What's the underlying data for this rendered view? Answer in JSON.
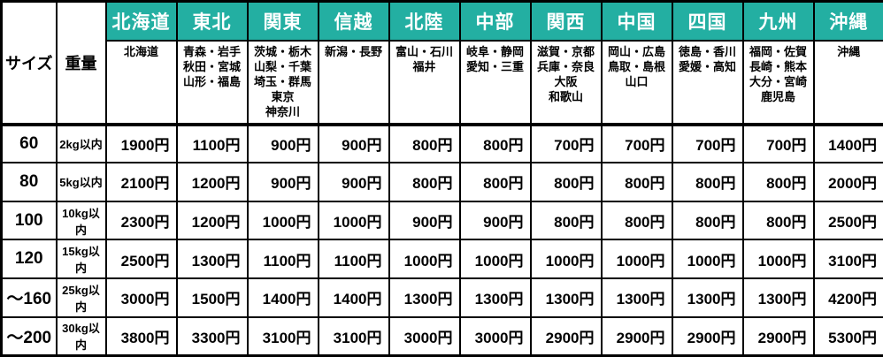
{
  "table": {
    "size_header": "サイズ",
    "weight_header": "重量",
    "price_suffix": "円",
    "regions": [
      {
        "name": "北海道",
        "prefectures": [
          "北海道"
        ]
      },
      {
        "name": "東北",
        "prefectures": [
          "青森・岩手",
          "秋田・宮城",
          "山形・福島"
        ]
      },
      {
        "name": "関東",
        "prefectures": [
          "茨城・栃木",
          "山梨・千葉",
          "埼玉・群馬",
          "東京",
          "神奈川"
        ]
      },
      {
        "name": "信越",
        "prefectures": [
          "新潟・長野"
        ]
      },
      {
        "name": "北陸",
        "prefectures": [
          "富山・石川",
          "福井"
        ]
      },
      {
        "name": "中部",
        "prefectures": [
          "岐阜・静岡",
          "愛知・三重"
        ]
      },
      {
        "name": "関西",
        "prefectures": [
          "滋賀・京都",
          "兵庫・奈良",
          "大阪",
          "和歌山"
        ]
      },
      {
        "name": "中国",
        "prefectures": [
          "岡山・広島",
          "鳥取・島根",
          "山口"
        ]
      },
      {
        "name": "四国",
        "prefectures": [
          "徳島・香川",
          "愛媛・高知"
        ]
      },
      {
        "name": "九州",
        "prefectures": [
          "福岡・佐賀",
          "長崎・熊本",
          "大分・宮崎",
          "鹿児島"
        ]
      },
      {
        "name": "沖縄",
        "prefectures": [
          "沖縄"
        ]
      }
    ],
    "rows": [
      {
        "size": "60",
        "weight": "2kg以内",
        "prices": [
          "1900円",
          "1100円",
          "900円",
          "900円",
          "800円",
          "800円",
          "700円",
          "700円",
          "700円",
          "700円",
          "1400円"
        ]
      },
      {
        "size": "80",
        "weight": "5kg以内",
        "prices": [
          "2100円",
          "1200円",
          "900円",
          "900円",
          "800円",
          "800円",
          "800円",
          "800円",
          "800円",
          "800円",
          "2000円"
        ]
      },
      {
        "size": "100",
        "weight": "10kg以内",
        "prices": [
          "2300円",
          "1200円",
          "1000円",
          "1000円",
          "900円",
          "900円",
          "800円",
          "800円",
          "800円",
          "800円",
          "2500円"
        ]
      },
      {
        "size": "120",
        "weight": "15kg以内",
        "prices": [
          "2500円",
          "1300円",
          "1100円",
          "1100円",
          "1000円",
          "1000円",
          "1000円",
          "1000円",
          "1000円",
          "1000円",
          "3100円"
        ]
      },
      {
        "size": "～160",
        "weight": "25kg以内",
        "prices": [
          "3000円",
          "1500円",
          "1400円",
          "1400円",
          "1300円",
          "1300円",
          "1300円",
          "1300円",
          "1300円",
          "1300円",
          "4200円"
        ]
      },
      {
        "size": "～200",
        "weight": "30kg以内",
        "prices": [
          "3800円",
          "3300円",
          "3100円",
          "3100円",
          "3000円",
          "3000円",
          "2900円",
          "2900円",
          "2900円",
          "2900円",
          "5300円"
        ]
      }
    ],
    "colors": {
      "header_bg": "#23afa2",
      "header_text": "#ffffff",
      "border": "#000000",
      "text": "#000000",
      "background": "#ffffff"
    }
  }
}
